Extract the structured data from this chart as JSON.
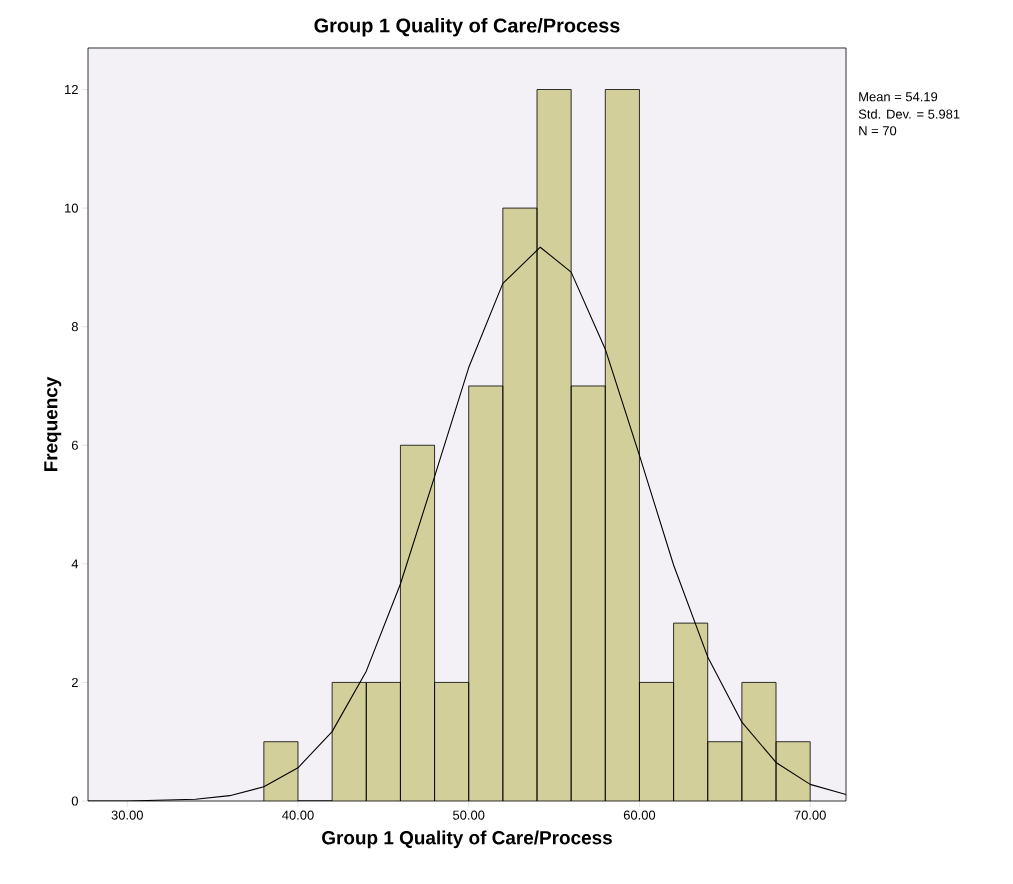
{
  "chart_data": {
    "type": "histogram",
    "title": "Group 1 Quality of Care/Process",
    "xlabel": "Group 1 Quality of Care/Process",
    "ylabel": "Frequency",
    "annotations": [
      "Mean = 54.19",
      "Std. Dev. = 5.981",
      "N = 70"
    ],
    "bins": [
      38,
      40,
      42,
      44,
      46,
      48,
      50,
      52,
      54,
      56,
      58,
      60,
      62,
      64,
      66,
      68,
      70
    ],
    "values": [
      1,
      0,
      2,
      2,
      6,
      2,
      7,
      10,
      12,
      7,
      12,
      2,
      3,
      1,
      2,
      1
    ],
    "color": "#d3cf9a",
    "series": [
      {
        "type": "line",
        "color": "#000000",
        "x": [
          27.7,
          30,
          34,
          36,
          38,
          40,
          42,
          44,
          46,
          48,
          50,
          52,
          54.19,
          56,
          58,
          60,
          62,
          64,
          66,
          68,
          70,
          72.1
        ],
        "values": [
          0.0,
          0.0,
          0.03,
          0.09,
          0.24,
          0.56,
          1.17,
          2.19,
          3.66,
          5.47,
          7.31,
          8.73,
          9.34,
          8.92,
          7.62,
          5.83,
          3.98,
          2.43,
          1.33,
          0.65,
          0.28,
          0.11
        ]
      }
    ],
    "xlim": [
      27.7,
      72.1
    ],
    "ylim": [
      0,
      12.7
    ],
    "xticks": [
      {
        "value": 30,
        "label": "30.00"
      },
      {
        "value": 40,
        "label": "40.00"
      },
      {
        "value": 50,
        "label": "50.00"
      },
      {
        "value": 60,
        "label": "60.00"
      },
      {
        "value": 70,
        "label": "70.00"
      }
    ],
    "yticks": [
      0,
      2,
      4,
      6,
      8,
      10,
      12
    ]
  }
}
